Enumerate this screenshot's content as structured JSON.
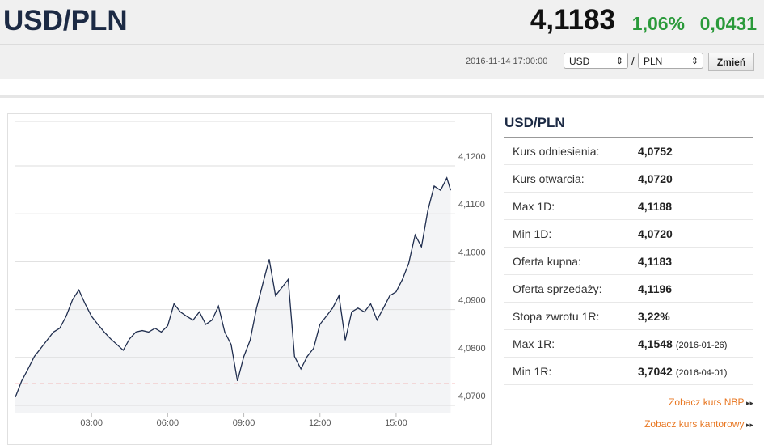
{
  "header": {
    "title": "USD/PLN",
    "price": "4,1183",
    "change_pct": "1,06%",
    "change": "0,0431"
  },
  "toolbar": {
    "datetime": "2016-11-14 17:00:00",
    "from": "USD",
    "separator": "/",
    "to": "PLN",
    "button": "Zmień"
  },
  "chart_data": {
    "type": "line",
    "x": [
      0,
      0.25,
      0.5,
      0.75,
      1,
      1.25,
      1.5,
      1.75,
      2,
      2.25,
      2.5,
      2.75,
      3,
      3.25,
      3.5,
      3.75,
      4,
      4.25,
      4.5,
      4.75,
      5,
      5.25,
      5.5,
      5.75,
      6,
      6.25,
      6.5,
      6.75,
      7,
      7.25,
      7.5,
      7.75,
      8,
      8.25,
      8.5,
      8.75,
      9,
      9.25,
      9.5,
      9.75,
      10,
      10.25,
      10.5,
      10.75,
      11,
      11.25,
      11.5,
      11.75,
      12,
      12.25,
      12.5,
      12.75,
      13,
      13.25,
      13.5,
      13.75,
      14,
      14.25,
      14.5,
      14.75,
      15,
      15.25,
      15.5,
      15.75,
      16,
      16.25,
      16.5,
      16.75,
      17,
      17.15
    ],
    "series": [
      {
        "color": "#1f2d4e",
        "values": [
          4.0717,
          4.0751,
          4.0776,
          4.0802,
          4.0819,
          4.0836,
          4.0853,
          4.0861,
          4.0886,
          4.092,
          4.0941,
          4.0912,
          4.0886,
          4.0869,
          4.0853,
          4.0839,
          4.0827,
          4.0815,
          4.0839,
          4.0853,
          4.0856,
          4.0853,
          4.0861,
          4.0853,
          4.0866,
          4.0912,
          4.0895,
          4.0886,
          4.0878,
          4.0895,
          4.0869,
          4.0878,
          4.0907,
          4.0853,
          4.0827,
          4.0751,
          4.0802,
          4.0836,
          4.0903,
          4.0954,
          4.1005,
          4.0929,
          4.0946,
          4.0963,
          4.0802,
          4.0776,
          4.0802,
          4.0819,
          4.0869,
          4.0886,
          4.0903,
          4.0929,
          4.0836,
          4.0895,
          4.0903,
          4.0895,
          4.0912,
          4.0878,
          4.0903,
          4.0929,
          4.0937,
          4.0963,
          4.0997,
          4.1056,
          4.1031,
          4.1107,
          4.1158,
          4.1149,
          4.1175,
          4.1149
        ]
      }
    ],
    "reference_line": 4.0745,
    "reference_color": "#f08080",
    "xlim": [
      0,
      17.2
    ],
    "xticks": [
      {
        "value": 3,
        "label": "03:00"
      },
      {
        "value": 6,
        "label": "06:00"
      },
      {
        "value": 9,
        "label": "09:00"
      },
      {
        "value": 12,
        "label": "12:00"
      },
      {
        "value": 15,
        "label": "15:00"
      }
    ],
    "ylim": [
      4.0683,
      4.1293
    ],
    "yticks": [
      {
        "value": 4.07,
        "label": "4,0700"
      },
      {
        "value": 4.08,
        "label": "4,0800"
      },
      {
        "value": 4.09,
        "label": "4,0900"
      },
      {
        "value": 4.1,
        "label": "4,1000"
      },
      {
        "value": 4.11,
        "label": "4,1100"
      },
      {
        "value": 4.12,
        "label": "4,1200"
      }
    ],
    "grid": true
  },
  "table": {
    "title": "USD/PLN",
    "rows": [
      {
        "label": "Kurs odniesienia:",
        "value": "4,0752"
      },
      {
        "label": "Kurs otwarcia:",
        "value": "4,0720"
      },
      {
        "label": "Max 1D:",
        "value": "4,1188"
      },
      {
        "label": "Min 1D:",
        "value": "4,0720"
      },
      {
        "label": "Oferta kupna:",
        "value": "4,1183"
      },
      {
        "label": "Oferta sprzedaży:",
        "value": "4,1196"
      },
      {
        "label": "Stopa zwrotu 1R:",
        "value": "3,22%"
      },
      {
        "label": "Max 1R:",
        "value": "4,1548",
        "note": "(2016-01-26)"
      },
      {
        "label": "Min 1R:",
        "value": "3,7042",
        "note": "(2016-04-01)"
      }
    ],
    "links": [
      "Zobacz kurs NBP",
      "Zobacz kurs kantorowy"
    ]
  }
}
